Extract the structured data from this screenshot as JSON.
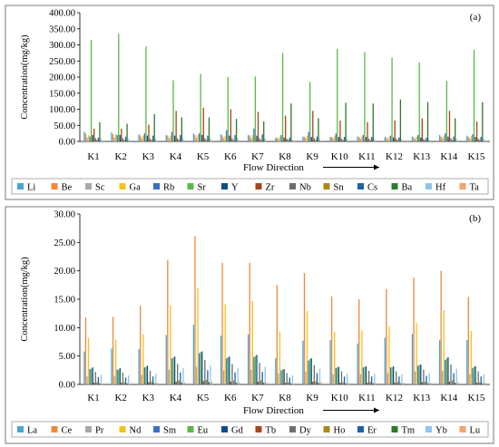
{
  "chart_data": [
    {
      "type": "bar",
      "panel_label": "(a)",
      "ylabel": "Concentration(mg/kg)",
      "xlabel": "Flow Direction",
      "ylim": [
        0,
        400
      ],
      "yticks": [
        "0.00",
        "50.00",
        "100.00",
        "150.00",
        "200.00",
        "250.00",
        "300.00",
        "350.00",
        "400.00"
      ],
      "categories": [
        "K1",
        "K2",
        "K3",
        "K4",
        "K5",
        "K6",
        "K7",
        "K8",
        "K9",
        "K10",
        "K11",
        "K12",
        "K13",
        "K14",
        "K15"
      ],
      "grid": false,
      "legend_position": "bottom",
      "series": [
        {
          "name": "Li",
          "color": "#4aa3d8",
          "values": [
            30,
            28,
            22,
            20,
            25,
            22,
            20,
            10,
            15,
            14,
            15,
            14,
            15,
            20,
            18
          ]
        },
        {
          "name": "Be",
          "color": "#f0883c",
          "values": [
            25,
            22,
            18,
            18,
            20,
            18,
            18,
            12,
            14,
            14,
            14,
            12,
            12,
            15,
            14
          ]
        },
        {
          "name": "Sc",
          "color": "#a8a8a8",
          "values": [
            12,
            12,
            10,
            10,
            12,
            10,
            10,
            8,
            10,
            9,
            9,
            8,
            8,
            10,
            9
          ]
        },
        {
          "name": "Ga",
          "color": "#f5c21b",
          "values": [
            20,
            22,
            18,
            18,
            20,
            18,
            20,
            15,
            18,
            16,
            16,
            15,
            15,
            18,
            16
          ]
        },
        {
          "name": "Rb",
          "color": "#3a6fc4",
          "values": [
            15,
            20,
            25,
            30,
            25,
            35,
            40,
            20,
            30,
            25,
            20,
            18,
            20,
            25,
            22
          ]
        },
        {
          "name": "Sr",
          "color": "#5cb84a",
          "values": [
            315,
            335,
            295,
            190,
            210,
            200,
            202,
            275,
            185,
            288,
            278,
            260,
            245,
            188,
            285
          ]
        },
        {
          "name": "Y",
          "color": "#0f4c8c",
          "values": [
            20,
            20,
            18,
            18,
            20,
            18,
            18,
            12,
            14,
            14,
            14,
            12,
            12,
            15,
            14
          ]
        },
        {
          "name": "Zr",
          "color": "#a8441a",
          "values": [
            40,
            40,
            52,
            95,
            105,
            100,
            92,
            80,
            95,
            65,
            60,
            65,
            72,
            95,
            62
          ]
        },
        {
          "name": "Nb",
          "color": "#6e6e6e",
          "values": [
            10,
            10,
            9,
            10,
            10,
            10,
            10,
            8,
            10,
            9,
            9,
            8,
            8,
            10,
            9
          ]
        },
        {
          "name": "Sn",
          "color": "#a88a1c",
          "values": [
            5,
            5,
            5,
            5,
            5,
            5,
            5,
            5,
            5,
            5,
            5,
            5,
            5,
            5,
            5
          ]
        },
        {
          "name": "Cs",
          "color": "#2060a8",
          "values": [
            12,
            15,
            18,
            20,
            18,
            20,
            22,
            12,
            15,
            14,
            14,
            12,
            12,
            15,
            14
          ]
        },
        {
          "name": "Ba",
          "color": "#2f7a2a",
          "values": [
            60,
            55,
            85,
            75,
            75,
            70,
            62,
            118,
            72,
            120,
            118,
            130,
            122,
            72,
            122
          ]
        },
        {
          "name": "Hf",
          "color": "#8ec5ec",
          "values": [
            8,
            8,
            8,
            9,
            9,
            9,
            9,
            6,
            8,
            7,
            7,
            6,
            6,
            8,
            7
          ]
        },
        {
          "name": "Ta",
          "color": "#f4a26c",
          "values": [
            3,
            3,
            3,
            3,
            3,
            3,
            3,
            3,
            3,
            3,
            3,
            3,
            3,
            3,
            3
          ]
        }
      ]
    },
    {
      "type": "bar",
      "panel_label": "(b)",
      "ylabel": "Concentration(mg/kg)",
      "xlabel": "Flow Direction",
      "ylim": [
        0,
        30
      ],
      "yticks": [
        "0.00",
        "5.00",
        "10.00",
        "15.00",
        "20.00",
        "25.00",
        "30.00"
      ],
      "categories": [
        "K1",
        "K2",
        "K3",
        "K4",
        "K5",
        "K6",
        "K7",
        "K8",
        "K9",
        "K10",
        "K11",
        "K12",
        "K13",
        "K14",
        "K15"
      ],
      "grid": false,
      "legend_position": "bottom",
      "series": [
        {
          "name": "La",
          "color": "#4aa3d8",
          "values": [
            5.8,
            6.3,
            6.2,
            8.7,
            10.5,
            8.6,
            8.8,
            4.6,
            7.7,
            7.8,
            7.2,
            8.2,
            8.9,
            7.8,
            7.8
          ]
        },
        {
          "name": "Ce",
          "color": "#f0883c",
          "values": [
            11.8,
            11.9,
            13.9,
            21.9,
            26.1,
            21.4,
            21.4,
            17.5,
            19.6,
            15.5,
            15.0,
            16.8,
            18.8,
            20.0,
            15.4
          ]
        },
        {
          "name": "Pr",
          "color": "#a8a8a8",
          "values": [
            1.4,
            1.5,
            1.7,
            2.6,
            3.1,
            2.5,
            2.6,
            2.0,
            2.3,
            1.8,
            1.8,
            2.0,
            2.3,
            2.4,
            1.8
          ]
        },
        {
          "name": "Nd",
          "color": "#f5c21b",
          "values": [
            8.2,
            7.9,
            8.8,
            13.9,
            16.9,
            14.1,
            14.7,
            9.3,
            12.9,
            9.3,
            9.5,
            10.2,
            10.8,
            13.1,
            9.4
          ]
        },
        {
          "name": "Sm",
          "color": "#3a6fc4",
          "values": [
            2.7,
            2.6,
            3.0,
            4.6,
            5.5,
            4.6,
            4.8,
            2.5,
            4.2,
            2.9,
            3.0,
            3.0,
            3.3,
            4.3,
            2.9
          ]
        },
        {
          "name": "Eu",
          "color": "#5cb84a",
          "values": [
            2.8,
            2.6,
            3.1,
            4.7,
            5.7,
            4.8,
            5.0,
            2.6,
            4.5,
            3.0,
            3.1,
            3.0,
            3.4,
            4.6,
            3.1
          ]
        },
        {
          "name": "Gd",
          "color": "#0f4c8c",
          "values": [
            3.0,
            2.9,
            3.3,
            4.9,
            5.8,
            4.9,
            5.2,
            2.7,
            4.6,
            3.1,
            3.2,
            3.2,
            3.5,
            4.8,
            3.2
          ]
        },
        {
          "name": "Tb",
          "color": "#a8441a",
          "values": [
            0.3,
            0.3,
            0.4,
            0.5,
            0.6,
            0.5,
            0.5,
            0.3,
            0.5,
            0.3,
            0.3,
            0.3,
            0.4,
            0.5,
            0.3
          ]
        },
        {
          "name": "Dy",
          "color": "#6e6e6e",
          "values": [
            2.2,
            2.1,
            2.4,
            3.6,
            4.3,
            3.6,
            3.8,
            2.0,
            3.4,
            2.3,
            2.4,
            2.3,
            2.6,
            3.5,
            2.3
          ]
        },
        {
          "name": "Ho",
          "color": "#a88a1c",
          "values": [
            0.4,
            0.4,
            0.5,
            0.7,
            0.8,
            0.7,
            0.7,
            0.4,
            0.6,
            0.4,
            0.5,
            0.4,
            0.5,
            0.7,
            0.4
          ]
        },
        {
          "name": "Er",
          "color": "#2060a8",
          "values": [
            1.3,
            1.2,
            1.4,
            2.1,
            2.5,
            2.1,
            2.2,
            1.2,
            2.0,
            1.4,
            1.4,
            1.4,
            1.5,
            2.0,
            1.4
          ]
        },
        {
          "name": "Tm",
          "color": "#2f7a2a",
          "values": [
            0.2,
            0.2,
            0.2,
            0.3,
            0.4,
            0.3,
            0.3,
            0.2,
            0.3,
            0.2,
            0.2,
            0.2,
            0.2,
            0.3,
            0.2
          ]
        },
        {
          "name": "Yb",
          "color": "#8ec5ec",
          "values": [
            1.7,
            1.6,
            1.9,
            2.9,
            3.3,
            2.9,
            3.1,
            1.6,
            2.8,
            1.9,
            1.9,
            1.8,
            2.0,
            2.8,
            1.8
          ]
        },
        {
          "name": "Lu",
          "color": "#f4a26c",
          "values": [
            0.2,
            0.2,
            0.3,
            0.4,
            0.5,
            0.4,
            0.4,
            0.2,
            0.4,
            0.3,
            0.3,
            0.3,
            0.3,
            0.4,
            0.3
          ]
        }
      ]
    }
  ]
}
